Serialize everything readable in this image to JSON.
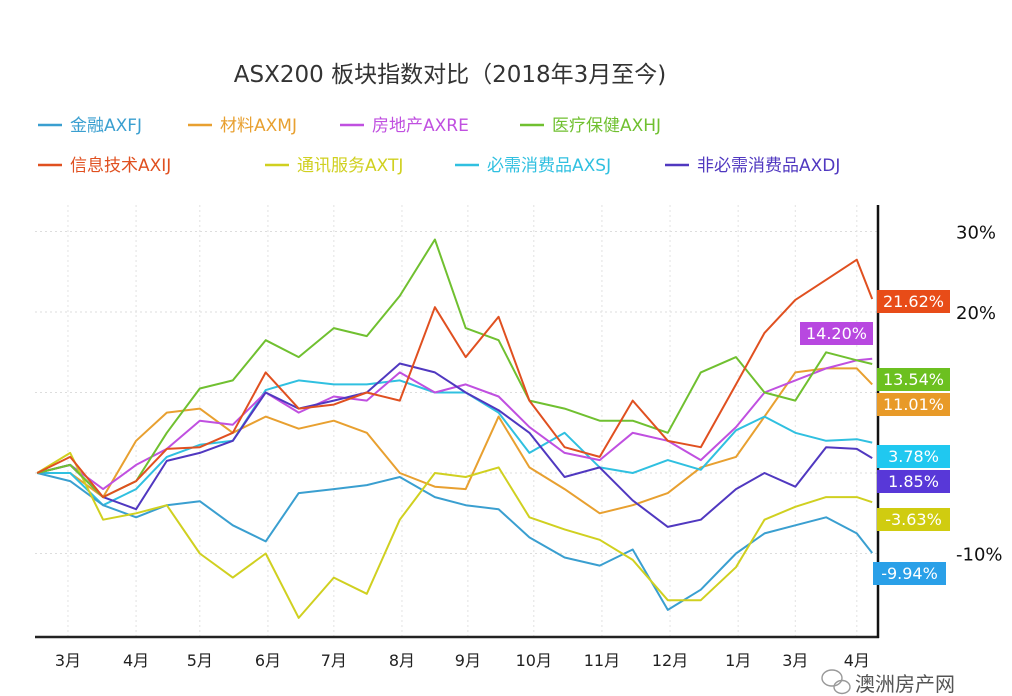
{
  "chart_data": {
    "type": "line",
    "title": "ASX200 板块指数对比（2018年3月至今)",
    "xlabel": "",
    "ylabel": "",
    "x_range": [
      "2018-03-01",
      "2019-03-23"
    ],
    "ylim": [
      -20,
      33
    ],
    "y_unit": "%",
    "grid": true,
    "legend_placement": "top",
    "y_axis_side": "right",
    "x_ticks": [
      {
        "label": "3月",
        "date": "2018-03-16"
      },
      {
        "label": "4月",
        "date": "2018-04-16"
      },
      {
        "label": "5月",
        "date": "2018-05-15"
      },
      {
        "label": "6月",
        "date": "2018-06-15"
      },
      {
        "label": "7月",
        "date": "2018-07-15"
      },
      {
        "label": "8月",
        "date": "2018-08-15"
      },
      {
        "label": "9月",
        "date": "2018-09-14"
      },
      {
        "label": "10月",
        "date": "2018-10-14"
      },
      {
        "label": "11月",
        "date": "2018-11-14"
      },
      {
        "label": "12月",
        "date": "2018-12-15"
      },
      {
        "label": "1月",
        "date": "2019-01-15"
      },
      {
        "label": "3月",
        "date": "2019-02-10"
      },
      {
        "label": "4月",
        "date": "2019-03-10"
      }
    ],
    "y_ticks": [
      {
        "label": "30%",
        "value": 30
      },
      {
        "label": "20%",
        "value": 20
      },
      {
        "label": "-10%",
        "value": -10
      }
    ],
    "y_grid": [
      30,
      20,
      10,
      0,
      -10
    ],
    "x": [
      "2018-03-02",
      "2018-03-17",
      "2018-04-01",
      "2018-04-16",
      "2018-04-30",
      "2018-05-15",
      "2018-05-30",
      "2018-06-14",
      "2018-06-29",
      "2018-07-15",
      "2018-07-30",
      "2018-08-14",
      "2018-08-30",
      "2018-09-13",
      "2018-09-28",
      "2018-10-12",
      "2018-10-28",
      "2018-11-13",
      "2018-11-28",
      "2018-12-14",
      "2018-12-29",
      "2019-01-14",
      "2019-01-27",
      "2019-02-10",
      "2019-02-24",
      "2019-03-10",
      "2019-03-17"
    ],
    "series": [
      {
        "name": "金融AXFJ",
        "color": "#3a9fd0",
        "end_label": "-9.94%",
        "label_color": "#2aa0e8",
        "values": [
          0,
          -1,
          -4,
          -5.5,
          -4,
          -3.5,
          -6.5,
          -8.5,
          -2.5,
          -2,
          -1.5,
          -0.5,
          -3,
          -4,
          -4.5,
          -8,
          -10.5,
          -11.5,
          -9.5,
          -17,
          -14.5,
          -10,
          -7.5,
          -6.5,
          -5.5,
          -7.5,
          -9.94
        ]
      },
      {
        "name": "材料AXMJ",
        "color": "#e8a030",
        "end_label": "11.01%",
        "label_color": "#e89a28",
        "values": [
          0,
          0,
          -3,
          4,
          7.5,
          8,
          5,
          7,
          5.5,
          6.5,
          5,
          0,
          -1.7,
          -2,
          7,
          0.7,
          -2,
          -5,
          -4,
          -2.5,
          0.7,
          2,
          7,
          12.5,
          13,
          13,
          11.01
        ]
      },
      {
        "name": "房地产AXRE",
        "color": "#c050e0",
        "end_label": "14.20%",
        "label_color": "#b848e0",
        "values": [
          0,
          1,
          -2,
          1,
          3,
          6.5,
          6,
          10,
          7.5,
          9.5,
          9,
          12.5,
          10,
          11,
          9.5,
          5.7,
          2.5,
          1.6,
          5,
          4,
          1.6,
          5.7,
          10,
          11.5,
          13,
          14,
          14.2
        ]
      },
      {
        "name": "医疗保健AXHJ",
        "color": "#70c030",
        "end_label": "13.54%",
        "label_color": "#6cc020",
        "values": [
          0,
          1,
          -3,
          -1,
          5,
          10.5,
          11.5,
          16.5,
          14.4,
          18,
          17,
          22,
          29,
          18,
          16.5,
          9,
          8,
          6.5,
          6.5,
          5,
          12.5,
          14.4,
          10,
          9,
          15,
          14,
          13.54
        ]
      },
      {
        "name": "信息技术AXIJ",
        "color": "#e05020",
        "end_label": "21.62%",
        "label_color": "#e84c18",
        "values": [
          0,
          2,
          -3,
          -1,
          3,
          3.2,
          5,
          12.5,
          8,
          8.5,
          10,
          9,
          20.6,
          14.4,
          19.4,
          9,
          3.2,
          2,
          9,
          4,
          3.2,
          11,
          17.4,
          21.5,
          24,
          26.5,
          21.62
        ]
      },
      {
        "name": "通讯服务AXTJ",
        "color": "#d0d020",
        "end_label": "-3.63%",
        "label_color": "#d0cc10",
        "values": [
          0,
          2.5,
          -5.8,
          -5,
          -4,
          -10,
          -13,
          -10,
          -18,
          -13,
          -15,
          -5.8,
          0,
          -0.5,
          0.7,
          -5.5,
          -7,
          -8.3,
          -10.8,
          -15.8,
          -15.8,
          -11.7,
          -5.8,
          -4.2,
          -3,
          -3,
          -3.63
        ]
      },
      {
        "name": "必需消费品AXSJ",
        "color": "#30c0e0",
        "end_label": "3.78%",
        "label_color": "#20c8f0",
        "values": [
          0,
          0,
          -4,
          -2,
          2,
          3.5,
          4,
          10.3,
          11.5,
          11,
          11,
          11.5,
          10,
          10,
          7.5,
          2.5,
          5,
          0.7,
          0,
          1.6,
          0.4,
          5.3,
          7,
          5,
          4,
          4.2,
          3.78
        ]
      },
      {
        "name": "非必需消费品AXDJ",
        "color": "#5038c0",
        "end_label": "1.85%",
        "label_color": "#5838d8",
        "values": [
          0,
          1,
          -3,
          -4.5,
          1.5,
          2.5,
          4,
          10,
          8,
          9,
          10,
          13.6,
          12.5,
          10,
          7.8,
          5,
          -0.5,
          0.7,
          -3.4,
          -6.7,
          -5.8,
          -2,
          0,
          -1.7,
          3.2,
          3,
          1.85
        ]
      }
    ]
  },
  "watermark": "澳洲房产网"
}
